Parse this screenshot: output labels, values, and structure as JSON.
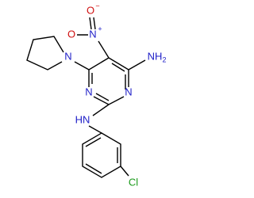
{
  "atoms": {
    "nitro_o1": {
      "label": "O",
      "charge": "−"
    },
    "nitro_n": {
      "label": "N",
      "charge": "+"
    },
    "nitro_o2": {
      "label": "O"
    },
    "amine": {
      "label": "NH",
      "subscript": "2"
    },
    "pyrrolidine_n": {
      "label": "N"
    },
    "ring_n1": {
      "label": "N"
    },
    "ring_n3": {
      "label": "N"
    },
    "anilino": {
      "label": "HN"
    },
    "chloro": {
      "label": "Cl"
    }
  }
}
